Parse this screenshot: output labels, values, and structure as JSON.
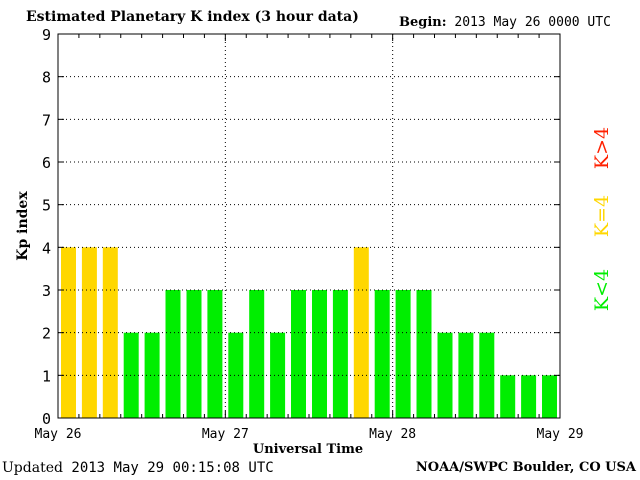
{
  "header": {
    "title": "Estimated Planetary K index (3 hour data)",
    "begin_label": "Begin:",
    "begin_value": "2013 May 26 0000 UTC"
  },
  "footer": {
    "updated_label": "Updated",
    "updated_value": "2013 May 29 00:15:08 UTC",
    "credit": "NOAA/SWPC Boulder, CO USA"
  },
  "colors": {
    "low": "#00ee00",
    "moderate": "#ffd700",
    "storm": "#ff2000",
    "grid": "#000000"
  },
  "legend": [
    {
      "label": "K<4",
      "color": "#00ee00"
    },
    {
      "label": "K=4",
      "color": "#ffd700"
    },
    {
      "label": "K>4",
      "color": "#ff2000"
    }
  ],
  "chart_data": {
    "type": "bar",
    "title": "Estimated Planetary K index (3 hour data)",
    "xlabel": "Universal Time",
    "ylabel": "Kp index",
    "ylim": [
      0,
      9
    ],
    "yticks": [
      0,
      1,
      2,
      3,
      4,
      5,
      6,
      7,
      8,
      9
    ],
    "xtick_labels": [
      "May 26",
      "May 27",
      "May 28",
      "May 29"
    ],
    "grid": true,
    "legend_position": "right",
    "values": [
      4,
      4,
      4,
      2,
      2,
      3,
      3,
      3,
      2,
      3,
      2,
      3,
      3,
      3,
      4,
      3,
      3,
      3,
      2,
      2,
      2,
      1,
      1,
      1
    ]
  }
}
